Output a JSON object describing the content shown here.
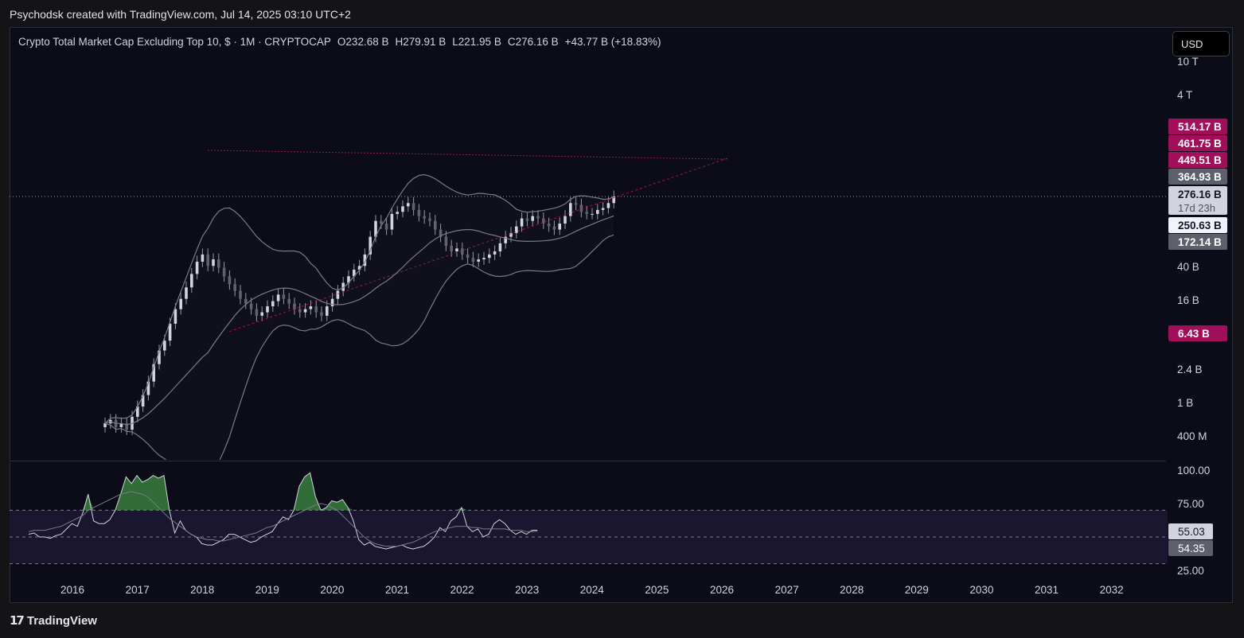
{
  "header": {
    "attribution": "Psychodsk created with TradingView.com, Jul 14, 2025 03:10 UTC+2"
  },
  "legend": {
    "symbol": "Crypto Total Market Cap Excluding Top 10, $ · 1M · CRYPTOCAP",
    "open": "O232.68 B",
    "high": "H279.91 B",
    "low": "L221.95 B",
    "close": "C276.16 B",
    "change": "+43.77 B (+18.83%)"
  },
  "currency_button": "USD",
  "footer": {
    "brand": "TradingView"
  },
  "colors": {
    "background": "#0b0c17",
    "candle": "#9598a1",
    "bands": "#787b86",
    "trendline": "#c2185b",
    "tag_magenta": "#a10f5a",
    "rsi_band": "#1a1630",
    "rsi_fill": "#4caf50"
  },
  "chart_data": [
    {
      "type": "candlestick",
      "title": "Crypto Total Market Cap Excluding Top 10",
      "scale": "log",
      "x_tick_labels": [
        "2016",
        "2017",
        "2018",
        "2019",
        "2020",
        "2021",
        "2022",
        "2023",
        "2024",
        "2025",
        "2026",
        "2027",
        "2028",
        "2029",
        "2030",
        "2031",
        "2032"
      ],
      "y_tick_labels": [
        "10 T",
        "4 T",
        "40 B",
        "16 B",
        "2.4 B",
        "1 B",
        "400 M"
      ],
      "price_tags": [
        {
          "label": "514.17 B",
          "style": "magenta"
        },
        {
          "label": "461.75 B",
          "style": "magenta"
        },
        {
          "label": "449.51 B",
          "style": "magenta"
        },
        {
          "label": "364.93 B",
          "style": "gray"
        },
        {
          "label": "276.16 B",
          "sublabel": "17d 23h",
          "style": "light"
        },
        {
          "label": "250.63 B",
          "style": "white"
        },
        {
          "label": "172.14 B",
          "style": "gray"
        },
        {
          "label": "6.43 B",
          "style": "magenta"
        }
      ],
      "last_close": 276.16,
      "approx_monthly_close_B": [
        0.5,
        0.55,
        0.45,
        0.5,
        0.42,
        0.6,
        0.8,
        1.1,
        1.6,
        2.6,
        3.8,
        5,
        8,
        12,
        16,
        22,
        32,
        45,
        55,
        40,
        48,
        38,
        30,
        24,
        20,
        16,
        14,
        12,
        10,
        11,
        13,
        15,
        18,
        16,
        14,
        12,
        11,
        12,
        13,
        11,
        10,
        13,
        16,
        20,
        25,
        30,
        36,
        40,
        55,
        90,
        140,
        130,
        110,
        170,
        180,
        210,
        230,
        190,
        160,
        150,
        140,
        110,
        90,
        70,
        60,
        65,
        55,
        50,
        45,
        48,
        50,
        55,
        60,
        75,
        90,
        100,
        120,
        150,
        140,
        160,
        150,
        130,
        120,
        110,
        130,
        160,
        230,
        220,
        180,
        170,
        170,
        190,
        200,
        230,
        276.16
      ],
      "trendlines": [
        {
          "name": "",
          "from": "2018-08",
          "to": "2026-08",
          "from_B": 1000,
          "to_B": 780
        },
        {
          "name": "",
          "from": "2018-12",
          "to": "2026-08",
          "from_B": 6.43,
          "to_B": 800
        }
      ]
    },
    {
      "type": "line",
      "title": "",
      "y_tick_labels": [
        "100.00",
        "75.00",
        "25.00"
      ],
      "levels": [
        70,
        50,
        30
      ],
      "series": [
        {
          "values": [
            52,
            53,
            50,
            50,
            49,
            51,
            52,
            56,
            60,
            58,
            68,
            82,
            62,
            60,
            60,
            63,
            70,
            82,
            95,
            90,
            96,
            91,
            93,
            96,
            94,
            96,
            70,
            53,
            62,
            55,
            52,
            50,
            45,
            44,
            44,
            46,
            48,
            52,
            52,
            50,
            48,
            46,
            47,
            50,
            52,
            54,
            60,
            65,
            63,
            70,
            88,
            95,
            98,
            80,
            70,
            72,
            77,
            76,
            78,
            72,
            62,
            48,
            44,
            46,
            43,
            42,
            41,
            42,
            43,
            44,
            42,
            41,
            42,
            43,
            46,
            50,
            57,
            54,
            62,
            65,
            72,
            58,
            54,
            56,
            50,
            52,
            60,
            63,
            60,
            55,
            52,
            54,
            52,
            55,
            55.03
          ],
          "label": "55.03"
        },
        {
          "values": [
            54,
            55,
            55,
            55,
            56,
            57,
            58,
            60,
            62,
            64,
            66,
            70,
            72,
            74,
            76,
            78,
            80,
            82,
            83,
            84,
            83,
            82,
            80,
            76,
            72,
            68,
            64,
            61,
            58,
            55,
            52,
            50,
            49,
            48,
            48,
            47,
            47,
            48,
            49,
            50,
            51,
            52,
            53,
            55,
            57,
            58,
            60,
            62,
            64,
            66,
            68,
            70,
            72,
            74,
            75,
            74,
            72,
            70,
            66,
            62,
            58,
            54,
            50,
            47,
            45,
            44,
            43,
            43,
            43,
            44,
            45,
            46,
            48,
            50,
            52,
            54,
            55,
            56,
            57,
            58,
            58,
            58,
            57,
            57,
            56,
            56,
            56,
            56,
            56,
            55,
            55,
            55,
            54,
            54,
            54.35
          ],
          "label": "54.35"
        }
      ]
    }
  ]
}
